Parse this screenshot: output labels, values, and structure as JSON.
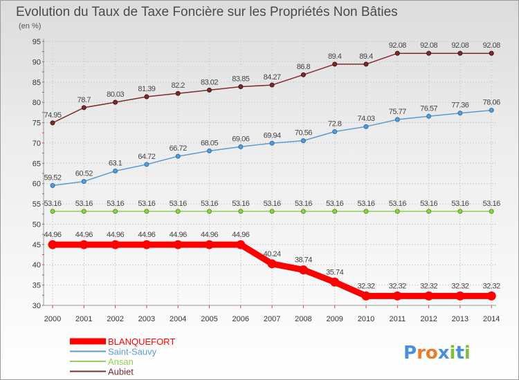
{
  "chart_data": {
    "type": "line",
    "title": "Evolution du Taux de Taxe Foncière sur les Propriétés Non Bâties",
    "subtitle": "(en %)",
    "xlabel": "",
    "ylabel": "",
    "ylim": [
      30,
      95
    ],
    "yticks": [
      30,
      35,
      40,
      45,
      50,
      55,
      60,
      65,
      70,
      75,
      80,
      85,
      90,
      95
    ],
    "grid": true,
    "legend_position": "bottom-left",
    "categories": [
      "2000",
      "2001",
      "2002",
      "2003",
      "2004",
      "2005",
      "2006",
      "2007",
      "2008",
      "2009",
      "2010",
      "2011",
      "2012",
      "2013",
      "2014"
    ],
    "series": [
      {
        "name": "BLANQUEFORT",
        "color": "#ff0000",
        "values": [
          44.96,
          44.96,
          44.96,
          44.96,
          44.96,
          44.96,
          44.96,
          40.24,
          38.74,
          35.74,
          32.32,
          32.32,
          32.32,
          32.32,
          32.32
        ],
        "labels": [
          "44.96",
          "44.96",
          "44.96",
          "44.96",
          "44.96",
          "44.96",
          "44.96",
          "40.24",
          "38.74",
          "35.74",
          "32.32",
          "32.32",
          "32.32",
          "32.32",
          "32.32"
        ]
      },
      {
        "name": "Saint-Sauvy",
        "color": "#5b9bd5",
        "values": [
          59.52,
          60.52,
          63.1,
          64.72,
          66.72,
          68.05,
          69.06,
          69.94,
          70.56,
          72.8,
          74.03,
          75.77,
          76.57,
          77.36,
          78.06
        ],
        "labels": [
          "59.52",
          "60.52",
          "63.1",
          "64.72",
          "66.72",
          "68.05",
          "69.06",
          "69.94",
          "70.56",
          "72.8",
          "74.03",
          "75.77",
          "76.57",
          "77.36",
          "78.06"
        ]
      },
      {
        "name": "Ansan",
        "color": "#8fd14f",
        "values": [
          53.16,
          53.16,
          53.16,
          53.16,
          53.16,
          53.16,
          53.16,
          53.16,
          53.16,
          53.16,
          53.16,
          53.16,
          53.16,
          53.16,
          53.16
        ],
        "labels": [
          "53.16",
          "53.16",
          "53.16",
          "53.16",
          "53.16",
          "53.16",
          "53.16",
          "53.16",
          "53.16",
          "53.16",
          "53.16",
          "53.16",
          "53.16",
          "53.16",
          "53.16"
        ]
      },
      {
        "name": "Aubiet",
        "color": "#7b2c2c",
        "values": [
          74.95,
          78.7,
          80.03,
          81.39,
          82.2,
          83.02,
          83.85,
          84.27,
          86.8,
          89.4,
          89.4,
          92.08,
          92.08,
          92.08,
          92.08
        ],
        "labels": [
          "74.95",
          "78.7",
          "80.03",
          "81.39",
          "82.2",
          "83.02",
          "83.85",
          "84.27",
          "86.8",
          "89.4",
          "89.4",
          "92.08",
          "92.08",
          "92.08",
          "92.08"
        ]
      }
    ]
  },
  "brand": {
    "logo_text": "Proxiti",
    "colors": [
      "#4a90d9",
      "#e87d2b",
      "#7cbf3a",
      "#d94a4a"
    ]
  }
}
